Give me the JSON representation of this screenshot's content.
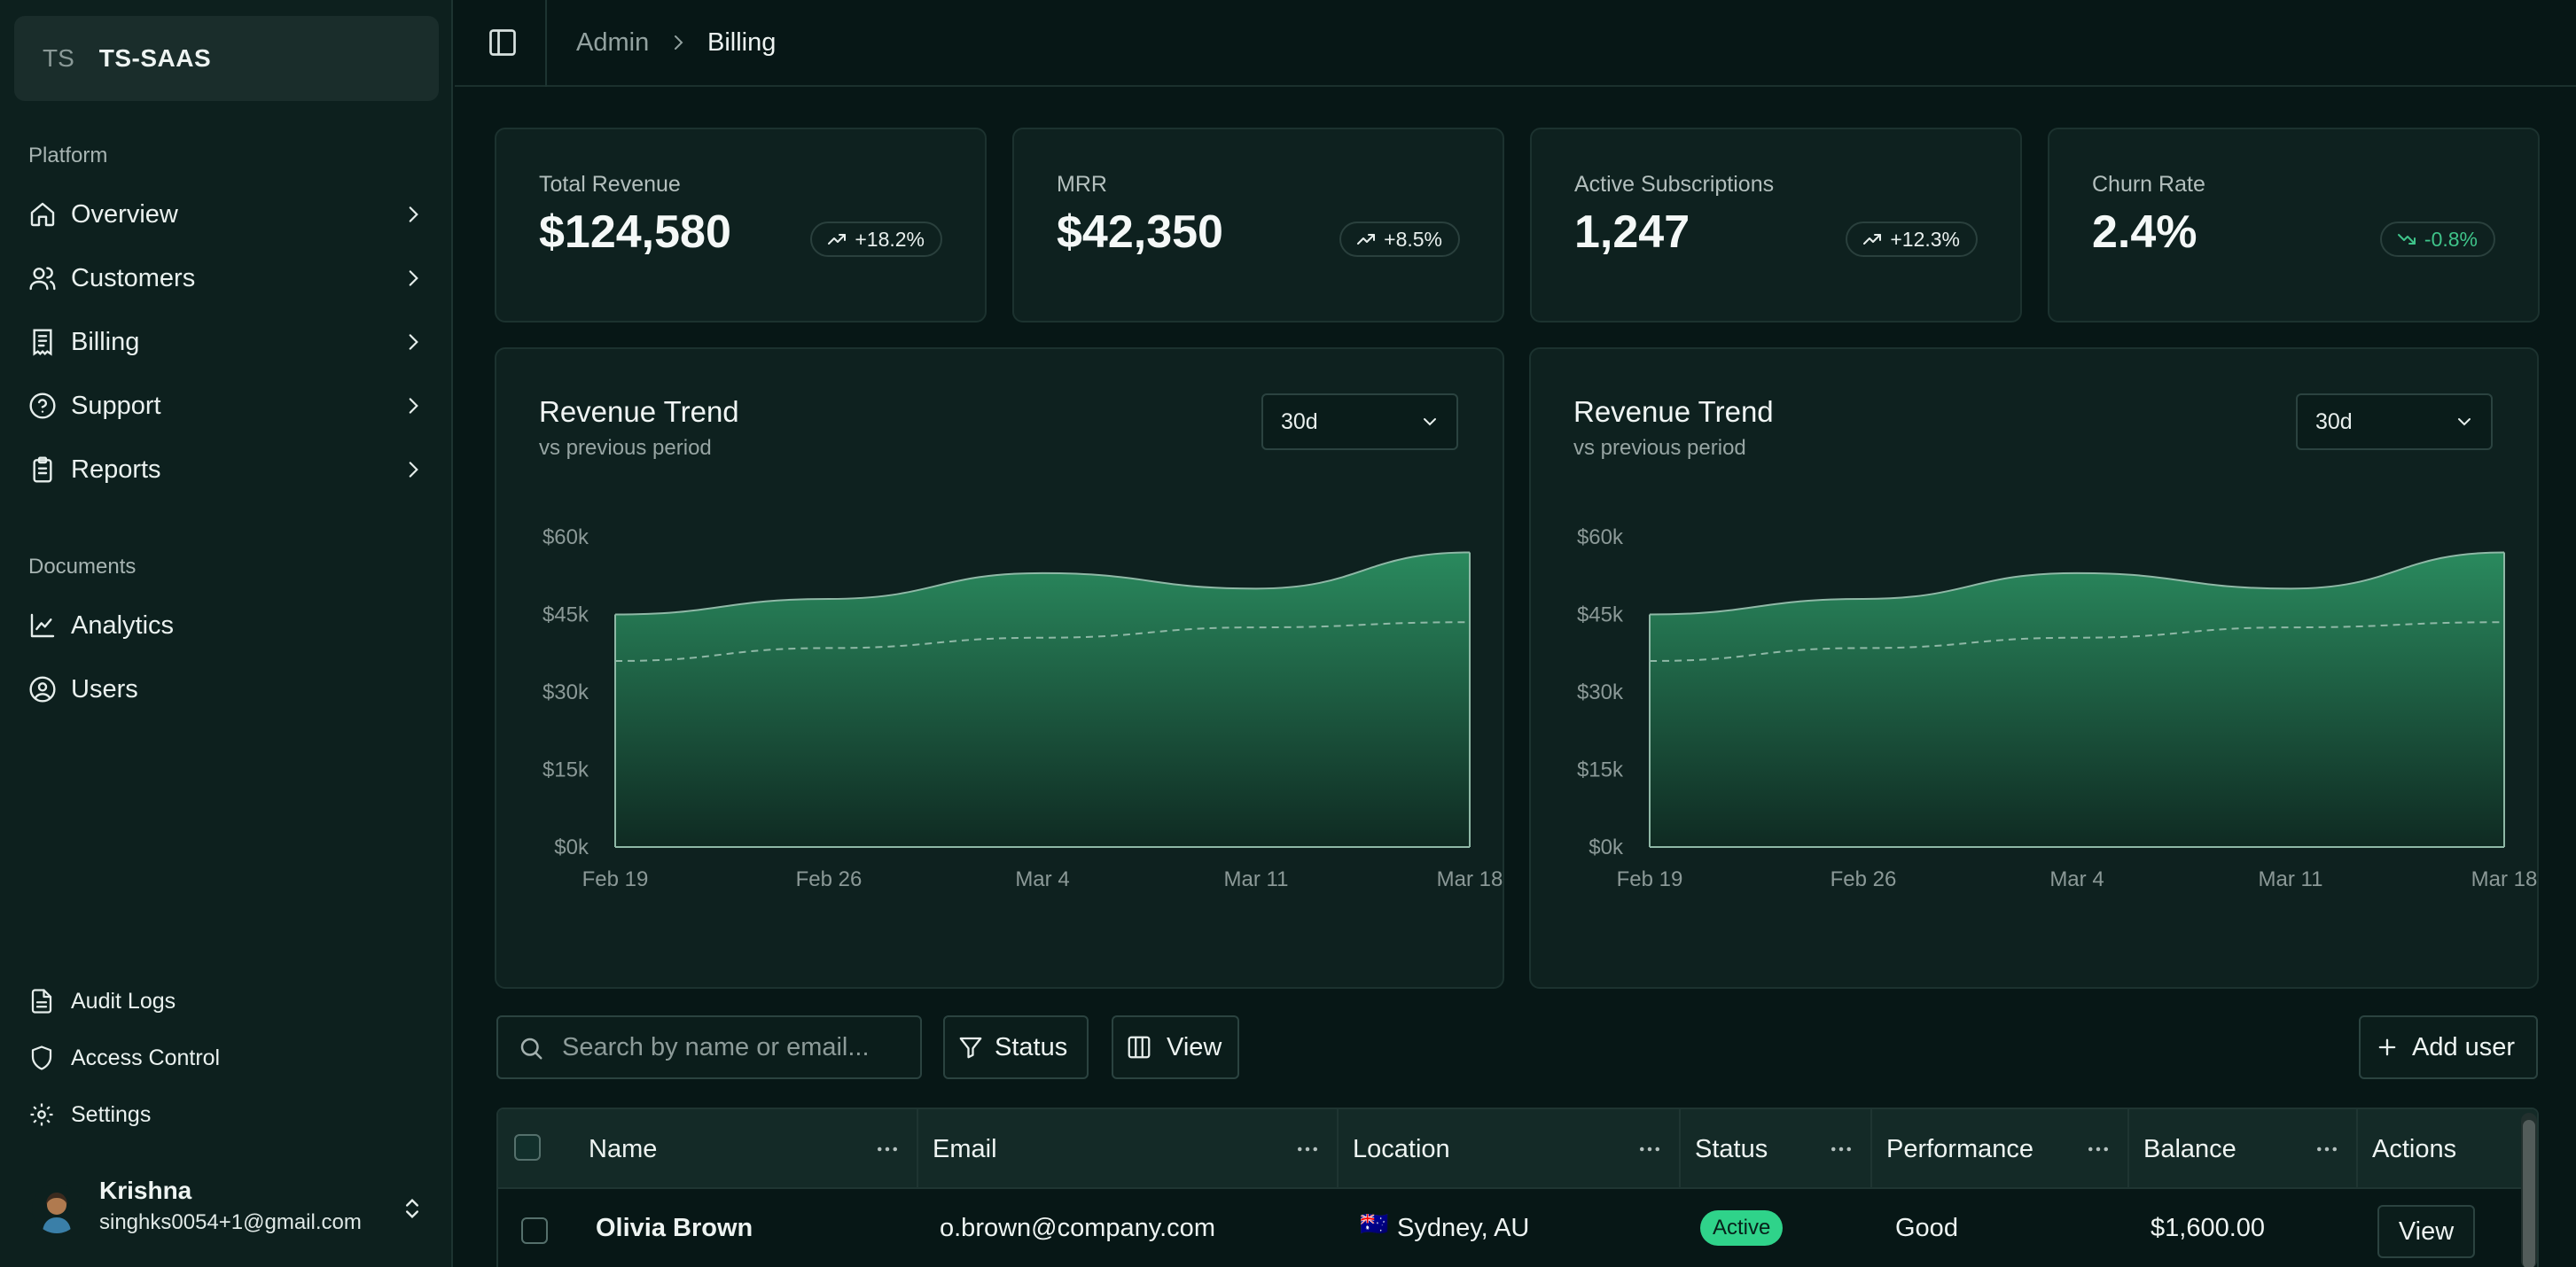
{
  "sidebar": {
    "team": {
      "initials": "TS",
      "name": "TS-SAAS"
    },
    "platform_label": "Platform",
    "platform_items": [
      {
        "label": "Overview",
        "icon": "home-icon"
      },
      {
        "label": "Customers",
        "icon": "users-icon"
      },
      {
        "label": "Billing",
        "icon": "receipt-icon"
      },
      {
        "label": "Support",
        "icon": "help-circle-icon"
      },
      {
        "label": "Reports",
        "icon": "clipboard-icon"
      }
    ],
    "documents_label": "Documents",
    "document_items": [
      {
        "label": "Analytics",
        "icon": "line-chart-icon"
      },
      {
        "label": "Users",
        "icon": "user-circle-icon"
      }
    ],
    "footer_items": [
      {
        "label": "Audit Logs",
        "icon": "file-text-icon"
      },
      {
        "label": "Access Control",
        "icon": "shield-icon"
      },
      {
        "label": "Settings",
        "icon": "gear-icon"
      }
    ],
    "user": {
      "name": "Krishna",
      "email": "singhks0054+1@gmail.com"
    }
  },
  "header": {
    "breadcrumb": [
      "Admin",
      "Billing"
    ]
  },
  "stats": [
    {
      "label": "Total Revenue",
      "value": "$124,580",
      "change": "+18.2%",
      "trend": "up"
    },
    {
      "label": "MRR",
      "value": "$42,350",
      "change": "+8.5%",
      "trend": "up"
    },
    {
      "label": "Active Subscriptions",
      "value": "1,247",
      "change": "+12.3%",
      "trend": "up"
    },
    {
      "label": "Churn Rate",
      "value": "2.4%",
      "change": "-0.8%",
      "trend": "down"
    }
  ],
  "charts": [
    {
      "title": "Revenue Trend",
      "subtitle": "vs previous period",
      "range": "30d"
    },
    {
      "title": "Revenue Trend",
      "subtitle": "vs previous period",
      "range": "30d"
    }
  ],
  "chart_data": [
    {
      "type": "area",
      "title": "Revenue Trend",
      "subtitle": "vs previous period",
      "x_ticks": [
        "Feb 19",
        "Feb 26",
        "Mar 4",
        "Mar 11",
        "Mar 18"
      ],
      "y_ticks": [
        "$60k",
        "$45k",
        "$30k",
        "$15k",
        "$0k"
      ],
      "ylim": [
        0,
        60000
      ],
      "series": [
        {
          "style": "area",
          "x": [
            "Feb 19",
            "Feb 26",
            "Mar 4",
            "Mar 11",
            "Mar 18"
          ],
          "values": [
            45000,
            48000,
            53000,
            50000,
            57000
          ]
        },
        {
          "style": "dashed",
          "x": [
            "Feb 19",
            "Feb 26",
            "Mar 4",
            "Mar 11",
            "Mar 18"
          ],
          "values": [
            36000,
            38500,
            40500,
            42500,
            43500
          ]
        }
      ],
      "grid": false
    },
    {
      "type": "area",
      "title": "Revenue Trend",
      "subtitle": "vs previous period",
      "x_ticks": [
        "Feb 19",
        "Feb 26",
        "Mar 4",
        "Mar 11",
        "Mar 18"
      ],
      "y_ticks": [
        "$60k",
        "$45k",
        "$30k",
        "$15k",
        "$0k"
      ],
      "ylim": [
        0,
        60000
      ],
      "series": [
        {
          "style": "area",
          "x": [
            "Feb 19",
            "Feb 26",
            "Mar 4",
            "Mar 11",
            "Mar 18"
          ],
          "values": [
            45000,
            48000,
            53000,
            50000,
            57000
          ]
        },
        {
          "style": "dashed",
          "x": [
            "Feb 19",
            "Feb 26",
            "Mar 4",
            "Mar 11",
            "Mar 18"
          ],
          "values": [
            36000,
            38500,
            40500,
            42500,
            43500
          ]
        }
      ],
      "grid": false
    }
  ],
  "toolbar": {
    "search_placeholder": "Search by name or email...",
    "status_label": "Status",
    "view_label": "View",
    "add_user_label": "Add user"
  },
  "table": {
    "columns": [
      "Name",
      "Email",
      "Location",
      "Status",
      "Performance",
      "Balance",
      "Actions"
    ],
    "rows": [
      {
        "name": "Olivia Brown",
        "email": "o.brown@company.com",
        "flag": "🇦🇺",
        "location": "Sydney, AU",
        "status": "Active",
        "performance": "Good",
        "balance": "$1,600.00",
        "action": "View"
      }
    ]
  },
  "colors": {
    "accent": "#2fd38a",
    "area_top": "#2a8a5e",
    "area_bottom": "#0f2a22",
    "background": "#071716"
  }
}
